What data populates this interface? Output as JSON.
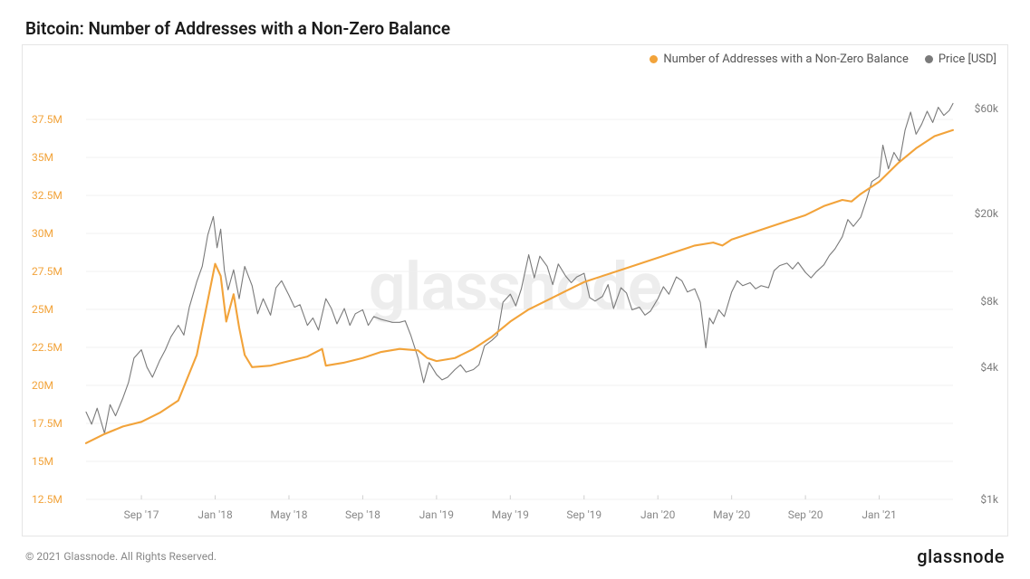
{
  "title": "Bitcoin: Number of Addresses with a Non-Zero Balance",
  "watermark": "glassnode",
  "copyright": "© 2021 Glassnode. All Rights Reserved.",
  "brand": "glassnode",
  "colors": {
    "addresses": "#f2a33a",
    "price": "#7a7a7a",
    "grid": "#f0f0f0",
    "tick": "#d0d0d0",
    "left_axis_text": "#f2a33a",
    "right_axis_text": "#7a7a7a",
    "x_axis_text": "#888888",
    "background": "#ffffff",
    "border": "#e5e5e5"
  },
  "legend": [
    {
      "label": "Number of Addresses with a Non-Zero Balance",
      "color": "#f2a33a"
    },
    {
      "label": "Price [USD]",
      "color": "#7a7a7a"
    }
  ],
  "chart": {
    "type": "line-dual-axis",
    "line_width_addresses": 2.1,
    "line_width_price": 1.1,
    "x_domain": [
      0,
      47
    ],
    "x_ticks": [
      {
        "t": 3,
        "label": "Sep '17"
      },
      {
        "t": 7,
        "label": "Jan '18"
      },
      {
        "t": 11,
        "label": "May '18"
      },
      {
        "t": 15,
        "label": "Sep '18"
      },
      {
        "t": 19,
        "label": "Jan '19"
      },
      {
        "t": 23,
        "label": "May '19"
      },
      {
        "t": 27,
        "label": "Sep '19"
      },
      {
        "t": 31,
        "label": "Jan '20"
      },
      {
        "t": 35,
        "label": "May '20"
      },
      {
        "t": 39,
        "label": "Sep '20"
      },
      {
        "t": 43,
        "label": "Jan '21"
      }
    ],
    "y_left": {
      "domain": [
        12.5,
        40
      ],
      "ticks": [
        {
          "v": 12.5,
          "label": "12.5M"
        },
        {
          "v": 15,
          "label": "15M"
        },
        {
          "v": 17.5,
          "label": "17.5M"
        },
        {
          "v": 20,
          "label": "20M"
        },
        {
          "v": 22.5,
          "label": "22.5M"
        },
        {
          "v": 25,
          "label": "25M"
        },
        {
          "v": 27.5,
          "label": "27.5M"
        },
        {
          "v": 30,
          "label": "30M"
        },
        {
          "v": 32.5,
          "label": "32.5M"
        },
        {
          "v": 35,
          "label": "35M"
        },
        {
          "v": 37.5,
          "label": "37.5M"
        }
      ]
    },
    "y_right": {
      "scale": "log",
      "domain": [
        1000,
        80000
      ],
      "ticks": [
        {
          "v": 1000,
          "label": "$1k"
        },
        {
          "v": 4000,
          "label": "$4k"
        },
        {
          "v": 8000,
          "label": "$8k"
        },
        {
          "v": 20000,
          "label": "$20k"
        },
        {
          "v": 60000,
          "label": "$60k"
        }
      ]
    },
    "series": {
      "addresses": [
        [
          0,
          16.2
        ],
        [
          1,
          16.8
        ],
        [
          2,
          17.3
        ],
        [
          3,
          17.6
        ],
        [
          4,
          18.2
        ],
        [
          5,
          19.0
        ],
        [
          6,
          22.0
        ],
        [
          6.5,
          25.0
        ],
        [
          7,
          28.0
        ],
        [
          7.3,
          27.2
        ],
        [
          7.6,
          24.2
        ],
        [
          8,
          26.0
        ],
        [
          8.3,
          23.8
        ],
        [
          8.6,
          22.0
        ],
        [
          9,
          21.2
        ],
        [
          10,
          21.3
        ],
        [
          11,
          21.6
        ],
        [
          12,
          21.9
        ],
        [
          12.8,
          22.4
        ],
        [
          13,
          21.3
        ],
        [
          14,
          21.5
        ],
        [
          15,
          21.8
        ],
        [
          16,
          22.2
        ],
        [
          17,
          22.4
        ],
        [
          18,
          22.3
        ],
        [
          18.5,
          21.8
        ],
        [
          19,
          21.6
        ],
        [
          20,
          21.8
        ],
        [
          21,
          22.4
        ],
        [
          22,
          23.2
        ],
        [
          23,
          24.2
        ],
        [
          24,
          25.0
        ],
        [
          25,
          25.6
        ],
        [
          26,
          26.2
        ],
        [
          27,
          26.8
        ],
        [
          28,
          27.2
        ],
        [
          29,
          27.6
        ],
        [
          30,
          28.0
        ],
        [
          31,
          28.4
        ],
        [
          32,
          28.8
        ],
        [
          33,
          29.2
        ],
        [
          34,
          29.4
        ],
        [
          34.5,
          29.2
        ],
        [
          35,
          29.6
        ],
        [
          36,
          30.0
        ],
        [
          37,
          30.4
        ],
        [
          38,
          30.8
        ],
        [
          39,
          31.2
        ],
        [
          40,
          31.8
        ],
        [
          41,
          32.2
        ],
        [
          41.5,
          32.1
        ],
        [
          42,
          32.6
        ],
        [
          43,
          33.4
        ],
        [
          44,
          34.6
        ],
        [
          45,
          35.6
        ],
        [
          46,
          36.4
        ],
        [
          47,
          36.8
        ]
      ],
      "price": [
        [
          0,
          2500
        ],
        [
          0.3,
          2200
        ],
        [
          0.6,
          2600
        ],
        [
          1,
          2000
        ],
        [
          1.3,
          2700
        ],
        [
          1.6,
          2400
        ],
        [
          2,
          2900
        ],
        [
          2.3,
          3400
        ],
        [
          2.6,
          4400
        ],
        [
          3,
          4800
        ],
        [
          3.3,
          4000
        ],
        [
          3.6,
          3600
        ],
        [
          4,
          4300
        ],
        [
          4.3,
          4800
        ],
        [
          4.6,
          5500
        ],
        [
          5,
          6200
        ],
        [
          5.3,
          5600
        ],
        [
          5.6,
          7500
        ],
        [
          6,
          9800
        ],
        [
          6.3,
          11500
        ],
        [
          6.6,
          16000
        ],
        [
          6.9,
          19400
        ],
        [
          7.1,
          14000
        ],
        [
          7.3,
          17000
        ],
        [
          7.5,
          11000
        ],
        [
          7.7,
          9000
        ],
        [
          8,
          11100
        ],
        [
          8.3,
          8200
        ],
        [
          8.6,
          11500
        ],
        [
          9,
          9400
        ],
        [
          9.3,
          7000
        ],
        [
          9.6,
          8200
        ],
        [
          10,
          6900
        ],
        [
          10.3,
          9200
        ],
        [
          10.6,
          9900
        ],
        [
          11,
          8500
        ],
        [
          11.3,
          7500
        ],
        [
          11.6,
          7700
        ],
        [
          12,
          6200
        ],
        [
          12.3,
          6700
        ],
        [
          12.6,
          5900
        ],
        [
          13,
          8200
        ],
        [
          13.3,
          7400
        ],
        [
          13.6,
          6300
        ],
        [
          14,
          7400
        ],
        [
          14.3,
          6200
        ],
        [
          14.6,
          7000
        ],
        [
          15,
          7300
        ],
        [
          15.3,
          6200
        ],
        [
          15.6,
          6800
        ],
        [
          16,
          6600
        ],
        [
          16.3,
          6500
        ],
        [
          16.6,
          6400
        ],
        [
          17,
          6400
        ],
        [
          17.3,
          6500
        ],
        [
          17.6,
          5600
        ],
        [
          18,
          4400
        ],
        [
          18.3,
          3400
        ],
        [
          18.6,
          4200
        ],
        [
          19,
          3700
        ],
        [
          19.3,
          3500
        ],
        [
          19.6,
          3600
        ],
        [
          20,
          3900
        ],
        [
          20.3,
          4100
        ],
        [
          20.6,
          3800
        ],
        [
          21,
          3900
        ],
        [
          21.3,
          4100
        ],
        [
          21.6,
          5000
        ],
        [
          22,
          5300
        ],
        [
          22.3,
          5600
        ],
        [
          22.6,
          7900
        ],
        [
          23,
          8600
        ],
        [
          23.3,
          7600
        ],
        [
          23.6,
          9100
        ],
        [
          24,
          13000
        ],
        [
          24.3,
          10200
        ],
        [
          24.6,
          12800
        ],
        [
          25,
          11500
        ],
        [
          25.3,
          9500
        ],
        [
          25.6,
          11800
        ],
        [
          26,
          10400
        ],
        [
          26.3,
          9700
        ],
        [
          26.6,
          10300
        ],
        [
          27,
          10700
        ],
        [
          27.3,
          8300
        ],
        [
          27.6,
          8000
        ],
        [
          28,
          8400
        ],
        [
          28.3,
          9500
        ],
        [
          28.6,
          7400
        ],
        [
          29,
          9200
        ],
        [
          29.3,
          8700
        ],
        [
          29.6,
          7300
        ],
        [
          30,
          7500
        ],
        [
          30.3,
          6900
        ],
        [
          30.6,
          7200
        ],
        [
          31,
          8200
        ],
        [
          31.3,
          9300
        ],
        [
          31.6,
          8600
        ],
        [
          32,
          10300
        ],
        [
          32.3,
          9900
        ],
        [
          32.6,
          8800
        ],
        [
          33,
          9100
        ],
        [
          33.3,
          7900
        ],
        [
          33.6,
          4900
        ],
        [
          33.8,
          6700
        ],
        [
          34,
          6300
        ],
        [
          34.3,
          7300
        ],
        [
          34.6,
          6800
        ],
        [
          35,
          8800
        ],
        [
          35.3,
          9900
        ],
        [
          35.6,
          9400
        ],
        [
          36,
          9700
        ],
        [
          36.3,
          9100
        ],
        [
          36.6,
          9400
        ],
        [
          37,
          9200
        ],
        [
          37.3,
          11000
        ],
        [
          37.6,
          11600
        ],
        [
          38,
          11900
        ],
        [
          38.3,
          11200
        ],
        [
          38.6,
          12000
        ],
        [
          39,
          10800
        ],
        [
          39.3,
          10200
        ],
        [
          39.6,
          10900
        ],
        [
          40,
          11700
        ],
        [
          40.3,
          12900
        ],
        [
          40.6,
          13800
        ],
        [
          41,
          15700
        ],
        [
          41.3,
          18800
        ],
        [
          41.6,
          17500
        ],
        [
          42,
          19300
        ],
        [
          42.3,
          23000
        ],
        [
          42.6,
          28000
        ],
        [
          43,
          29500
        ],
        [
          43.2,
          41000
        ],
        [
          43.5,
          32000
        ],
        [
          43.8,
          38000
        ],
        [
          44.1,
          34500
        ],
        [
          44.4,
          48000
        ],
        [
          44.7,
          58000
        ],
        [
          45,
          46000
        ],
        [
          45.3,
          51000
        ],
        [
          45.6,
          58500
        ],
        [
          45.9,
          52000
        ],
        [
          46.2,
          61000
        ],
        [
          46.5,
          56000
        ],
        [
          46.8,
          59000
        ],
        [
          47,
          63500
        ]
      ]
    }
  }
}
